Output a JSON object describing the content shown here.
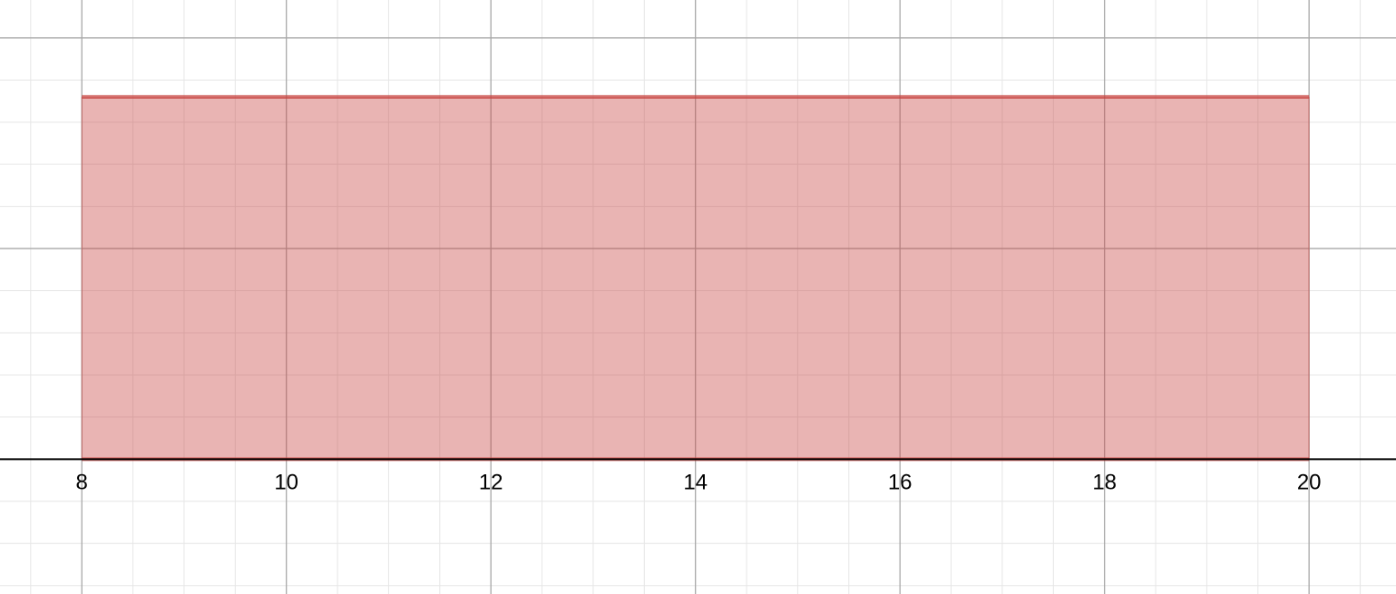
{
  "chart_data": {
    "type": "area",
    "xlim": [
      7.2,
      20.85
    ],
    "ylim": [
      -1.6,
      5.45
    ],
    "grid": true,
    "x_ticks": [
      8,
      10,
      12,
      14,
      16,
      18,
      20
    ],
    "x_tick_labels": [
      "8",
      "10",
      "12",
      "14",
      "16",
      "18",
      "20"
    ],
    "series": [
      {
        "x": [
          8,
          20
        ],
        "y": [
          4.3,
          4.3
        ],
        "fill_to": 0,
        "color": "#c74440"
      }
    ]
  },
  "colors": {
    "minor_grid": "#e6e6e6",
    "major_grid": "#a8a8a8",
    "axis": "#000000",
    "region_fill": "#c74440",
    "region_edge": "#c74440"
  }
}
